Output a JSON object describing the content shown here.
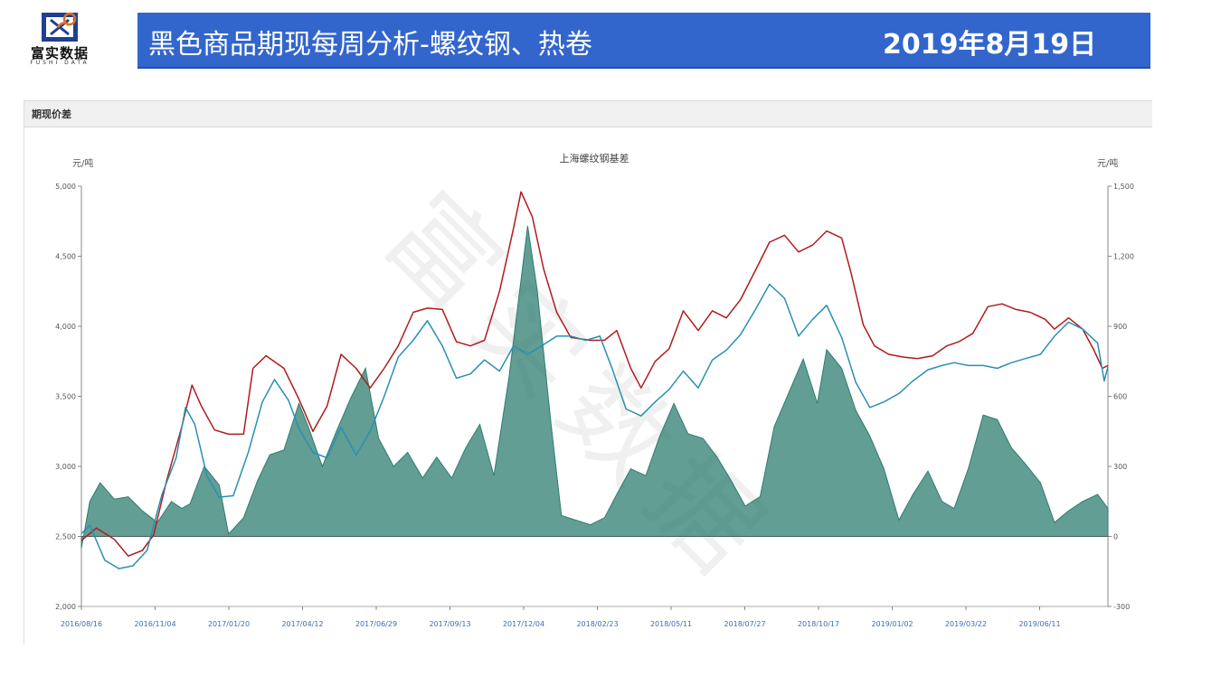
{
  "logo": {
    "text": "富实数据",
    "subtext": "FUSHI DATA"
  },
  "header": {
    "title": "黑色商品期现每周分析-螺纹钢、热卷",
    "date": "2019年8月19日",
    "background_color": "#3366cc"
  },
  "panel": {
    "title": "期现价差"
  },
  "watermark": "富实数据",
  "chart_data": {
    "type": "line",
    "title": "上海螺纹钢基差",
    "y_left": {
      "unit": "元/吨",
      "ticks": [
        "5,000",
        "4,500",
        "4,000",
        "3,500",
        "3,000",
        "2,500",
        "2,000"
      ],
      "range": [
        2000,
        5000
      ]
    },
    "y_right": {
      "unit": "元/吨",
      "ticks": [
        "1,500",
        "1,200",
        "900",
        "600",
        "300",
        "0",
        "-300"
      ],
      "range": [
        -300,
        1500
      ]
    },
    "x_ticks": [
      "2016/08/16",
      "2016/11/04",
      "2017/01/20",
      "2017/04/12",
      "2017/06/29",
      "2017/09/13",
      "2017/12/04",
      "2018/02/23",
      "2018/05/11",
      "2018/07/27",
      "2018/10/17",
      "2019/01/02",
      "2019/03/22",
      "2019/06/11"
    ],
    "x_range": [
      "2016-08-16",
      "2019-08-16"
    ],
    "colors": {
      "spot": "#b01c1c",
      "futures": "#2a8fb5",
      "basis": "#2e7d6f"
    },
    "series": [
      {
        "axis": "left",
        "color": "#b01c1c",
        "points": [
          [
            "2016-08-16",
            2470
          ],
          [
            "2016-09-01",
            2560
          ],
          [
            "2016-09-20",
            2480
          ],
          [
            "2016-10-05",
            2360
          ],
          [
            "2016-10-20",
            2400
          ],
          [
            "2016-11-01",
            2510
          ],
          [
            "2016-11-15",
            2900
          ],
          [
            "2016-12-01",
            3280
          ],
          [
            "2016-12-12",
            3580
          ],
          [
            "2016-12-22",
            3430
          ],
          [
            "2017-01-05",
            3260
          ],
          [
            "2017-01-20",
            3230
          ],
          [
            "2017-02-05",
            3230
          ],
          [
            "2017-02-15",
            3700
          ],
          [
            "2017-03-01",
            3790
          ],
          [
            "2017-03-20",
            3700
          ],
          [
            "2017-04-05",
            3480
          ],
          [
            "2017-04-20",
            3250
          ],
          [
            "2017-05-05",
            3430
          ],
          [
            "2017-05-20",
            3800
          ],
          [
            "2017-06-05",
            3700
          ],
          [
            "2017-06-20",
            3560
          ],
          [
            "2017-07-05",
            3700
          ],
          [
            "2017-07-20",
            3860
          ],
          [
            "2017-08-05",
            4100
          ],
          [
            "2017-08-20",
            4130
          ],
          [
            "2017-09-05",
            4120
          ],
          [
            "2017-09-20",
            3890
          ],
          [
            "2017-10-05",
            3860
          ],
          [
            "2017-10-20",
            3900
          ],
          [
            "2017-11-05",
            4250
          ],
          [
            "2017-11-20",
            4700
          ],
          [
            "2017-11-28",
            4960
          ],
          [
            "2017-12-10",
            4780
          ],
          [
            "2017-12-22",
            4410
          ],
          [
            "2018-01-05",
            4100
          ],
          [
            "2018-01-20",
            3920
          ],
          [
            "2018-02-10",
            3900
          ],
          [
            "2018-02-25",
            3900
          ],
          [
            "2018-03-10",
            3970
          ],
          [
            "2018-03-25",
            3700
          ],
          [
            "2018-04-05",
            3560
          ],
          [
            "2018-04-20",
            3750
          ],
          [
            "2018-05-05",
            3840
          ],
          [
            "2018-05-20",
            4110
          ],
          [
            "2018-06-05",
            3970
          ],
          [
            "2018-06-20",
            4110
          ],
          [
            "2018-07-05",
            4060
          ],
          [
            "2018-07-20",
            4190
          ],
          [
            "2018-08-05",
            4400
          ],
          [
            "2018-08-20",
            4600
          ],
          [
            "2018-09-05",
            4650
          ],
          [
            "2018-09-20",
            4530
          ],
          [
            "2018-10-05",
            4580
          ],
          [
            "2018-10-20",
            4680
          ],
          [
            "2018-11-05",
            4630
          ],
          [
            "2018-11-15",
            4380
          ],
          [
            "2018-11-28",
            4010
          ],
          [
            "2018-12-10",
            3860
          ],
          [
            "2018-12-25",
            3800
          ],
          [
            "2019-01-10",
            3780
          ],
          [
            "2019-01-25",
            3770
          ],
          [
            "2019-02-10",
            3790
          ],
          [
            "2019-02-25",
            3860
          ],
          [
            "2019-03-10",
            3890
          ],
          [
            "2019-03-25",
            3950
          ],
          [
            "2019-04-10",
            4140
          ],
          [
            "2019-04-25",
            4160
          ],
          [
            "2019-05-10",
            4120
          ],
          [
            "2019-05-25",
            4100
          ],
          [
            "2019-06-10",
            4050
          ],
          [
            "2019-06-20",
            3980
          ],
          [
            "2019-07-05",
            4060
          ],
          [
            "2019-07-20",
            3980
          ],
          [
            "2019-08-01",
            3830
          ],
          [
            "2019-08-10",
            3700
          ],
          [
            "2019-08-16",
            3720
          ]
        ]
      },
      {
        "axis": "left",
        "color": "#2a8fb5",
        "points": [
          [
            "2016-08-16",
            2520
          ],
          [
            "2016-08-25",
            2580
          ],
          [
            "2016-09-10",
            2330
          ],
          [
            "2016-09-25",
            2270
          ],
          [
            "2016-10-10",
            2290
          ],
          [
            "2016-10-25",
            2400
          ],
          [
            "2016-11-10",
            2800
          ],
          [
            "2016-11-25",
            3060
          ],
          [
            "2016-12-05",
            3420
          ],
          [
            "2016-12-15",
            3300
          ],
          [
            "2016-12-28",
            2930
          ],
          [
            "2017-01-10",
            2780
          ],
          [
            "2017-01-25",
            2790
          ],
          [
            "2017-02-10",
            3100
          ],
          [
            "2017-02-25",
            3460
          ],
          [
            "2017-03-10",
            3620
          ],
          [
            "2017-03-25",
            3470
          ],
          [
            "2017-04-05",
            3270
          ],
          [
            "2017-04-20",
            3100
          ],
          [
            "2017-05-05",
            3060
          ],
          [
            "2017-05-20",
            3280
          ],
          [
            "2017-06-05",
            3080
          ],
          [
            "2017-06-20",
            3250
          ],
          [
            "2017-07-05",
            3500
          ],
          [
            "2017-07-20",
            3780
          ],
          [
            "2017-08-05",
            3900
          ],
          [
            "2017-08-20",
            4040
          ],
          [
            "2017-09-05",
            3860
          ],
          [
            "2017-09-20",
            3630
          ],
          [
            "2017-10-05",
            3660
          ],
          [
            "2017-10-20",
            3760
          ],
          [
            "2017-11-05",
            3680
          ],
          [
            "2017-11-20",
            3860
          ],
          [
            "2017-12-05",
            3800
          ],
          [
            "2017-12-20",
            3860
          ],
          [
            "2018-01-05",
            3930
          ],
          [
            "2018-01-20",
            3930
          ],
          [
            "2018-02-05",
            3900
          ],
          [
            "2018-02-20",
            3930
          ],
          [
            "2018-03-05",
            3700
          ],
          [
            "2018-03-20",
            3410
          ],
          [
            "2018-04-05",
            3360
          ],
          [
            "2018-04-20",
            3460
          ],
          [
            "2018-05-05",
            3550
          ],
          [
            "2018-05-20",
            3680
          ],
          [
            "2018-06-05",
            3560
          ],
          [
            "2018-06-20",
            3760
          ],
          [
            "2018-07-05",
            3830
          ],
          [
            "2018-07-20",
            3940
          ],
          [
            "2018-08-05",
            4120
          ],
          [
            "2018-08-20",
            4300
          ],
          [
            "2018-09-05",
            4200
          ],
          [
            "2018-09-20",
            3930
          ],
          [
            "2018-10-05",
            4050
          ],
          [
            "2018-10-20",
            4150
          ],
          [
            "2018-11-05",
            3920
          ],
          [
            "2018-11-20",
            3600
          ],
          [
            "2018-12-05",
            3420
          ],
          [
            "2018-12-20",
            3460
          ],
          [
            "2019-01-05",
            3520
          ],
          [
            "2019-01-20",
            3610
          ],
          [
            "2019-02-05",
            3690
          ],
          [
            "2019-02-20",
            3720
          ],
          [
            "2019-03-05",
            3740
          ],
          [
            "2019-03-20",
            3720
          ],
          [
            "2019-04-05",
            3720
          ],
          [
            "2019-04-20",
            3700
          ],
          [
            "2019-05-05",
            3740
          ],
          [
            "2019-05-20",
            3770
          ],
          [
            "2019-06-05",
            3800
          ],
          [
            "2019-06-20",
            3930
          ],
          [
            "2019-07-05",
            4030
          ],
          [
            "2019-07-20",
            3980
          ],
          [
            "2019-08-05",
            3880
          ],
          [
            "2019-08-12",
            3610
          ],
          [
            "2019-08-16",
            3710
          ]
        ]
      },
      {
        "axis": "right",
        "color": "#2e7d6f",
        "fill": true,
        "points": [
          [
            "2016-08-16",
            -50
          ],
          [
            "2016-08-25",
            150
          ],
          [
            "2016-09-05",
            230
          ],
          [
            "2016-09-20",
            160
          ],
          [
            "2016-10-05",
            170
          ],
          [
            "2016-10-20",
            110
          ],
          [
            "2016-11-05",
            60
          ],
          [
            "2016-11-20",
            150
          ],
          [
            "2016-12-01",
            120
          ],
          [
            "2016-12-10",
            140
          ],
          [
            "2016-12-25",
            300
          ],
          [
            "2017-01-10",
            220
          ],
          [
            "2017-01-20",
            10
          ],
          [
            "2017-02-05",
            80
          ],
          [
            "2017-02-20",
            240
          ],
          [
            "2017-03-05",
            350
          ],
          [
            "2017-03-20",
            370
          ],
          [
            "2017-04-05",
            570
          ],
          [
            "2017-04-15",
            470
          ],
          [
            "2017-04-30",
            300
          ],
          [
            "2017-05-15",
            450
          ],
          [
            "2017-05-30",
            590
          ],
          [
            "2017-06-15",
            720
          ],
          [
            "2017-06-29",
            420
          ],
          [
            "2017-07-15",
            300
          ],
          [
            "2017-07-30",
            360
          ],
          [
            "2017-08-15",
            250
          ],
          [
            "2017-08-30",
            340
          ],
          [
            "2017-09-15",
            250
          ],
          [
            "2017-09-30",
            380
          ],
          [
            "2017-10-15",
            480
          ],
          [
            "2017-10-30",
            260
          ],
          [
            "2017-11-15",
            680
          ],
          [
            "2017-11-28",
            1100
          ],
          [
            "2017-12-05",
            1330
          ],
          [
            "2017-12-15",
            1060
          ],
          [
            "2017-12-30",
            480
          ],
          [
            "2018-01-10",
            90
          ],
          [
            "2018-01-25",
            70
          ],
          [
            "2018-02-10",
            50
          ],
          [
            "2018-02-25",
            80
          ],
          [
            "2018-03-10",
            180
          ],
          [
            "2018-03-25",
            290
          ],
          [
            "2018-04-10",
            260
          ],
          [
            "2018-04-25",
            430
          ],
          [
            "2018-05-10",
            570
          ],
          [
            "2018-05-25",
            440
          ],
          [
            "2018-06-10",
            420
          ],
          [
            "2018-06-25",
            340
          ],
          [
            "2018-07-10",
            240
          ],
          [
            "2018-07-25",
            130
          ],
          [
            "2018-08-10",
            170
          ],
          [
            "2018-08-25",
            470
          ],
          [
            "2018-09-10",
            620
          ],
          [
            "2018-09-25",
            760
          ],
          [
            "2018-10-10",
            570
          ],
          [
            "2018-10-20",
            800
          ],
          [
            "2018-11-05",
            720
          ],
          [
            "2018-11-20",
            540
          ],
          [
            "2018-12-05",
            430
          ],
          [
            "2018-12-20",
            290
          ],
          [
            "2019-01-05",
            70
          ],
          [
            "2019-01-20",
            180
          ],
          [
            "2019-02-05",
            280
          ],
          [
            "2019-02-20",
            150
          ],
          [
            "2019-03-05",
            120
          ],
          [
            "2019-03-20",
            290
          ],
          [
            "2019-04-05",
            520
          ],
          [
            "2019-04-20",
            500
          ],
          [
            "2019-05-05",
            380
          ],
          [
            "2019-05-20",
            310
          ],
          [
            "2019-06-05",
            230
          ],
          [
            "2019-06-20",
            60
          ],
          [
            "2019-07-05",
            110
          ],
          [
            "2019-07-20",
            150
          ],
          [
            "2019-08-05",
            180
          ],
          [
            "2019-08-16",
            120
          ]
        ]
      }
    ]
  }
}
